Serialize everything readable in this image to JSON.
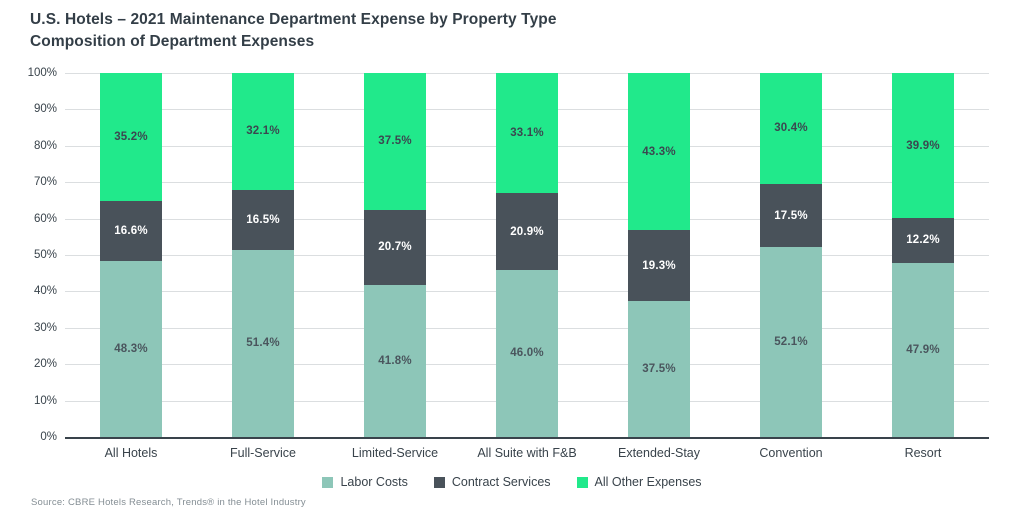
{
  "header": {
    "title": "U.S. Hotels – 2021 Maintenance Department Expense by Property Type",
    "subtitle": "Composition of Department Expenses"
  },
  "chart_data": {
    "type": "bar",
    "stacked": true,
    "title": "U.S. Hotels – 2021 Maintenance Department Expense by Property Type",
    "subtitle": "Composition of Department Expenses",
    "categories": [
      "All Hotels",
      "Full-Service",
      "Limited-Service",
      "All Suite with F&B",
      "Extended-Stay",
      "Convention",
      "Resort"
    ],
    "series": [
      {
        "name": "Labor Costs",
        "color": "#8DC6B8",
        "label_color": "#4A555D",
        "values": [
          48.3,
          51.4,
          41.8,
          46.0,
          37.5,
          52.1,
          47.9
        ]
      },
      {
        "name": "Contract Services",
        "color": "#49525A",
        "label_color": "#FFFFFF",
        "values": [
          16.6,
          16.5,
          20.7,
          20.9,
          19.3,
          17.5,
          12.2
        ]
      },
      {
        "name": "All Other Expenses",
        "color": "#21E98B",
        "label_color": "#3B4750",
        "values": [
          35.2,
          32.1,
          37.5,
          33.1,
          43.3,
          30.4,
          39.9
        ]
      }
    ],
    "value_suffix": "%",
    "xlabel": "",
    "ylabel": "",
    "ylim": [
      0,
      100
    ],
    "y_ticks": [
      "0%",
      "10%",
      "20%",
      "30%",
      "40%",
      "50%",
      "60%",
      "70%",
      "80%",
      "90%",
      "100%"
    ],
    "grid": true,
    "legend_position": "bottom"
  },
  "colors": {
    "title_text": "#333E47",
    "axis_text": "#39434B",
    "gridline": "#DBDEE0",
    "axis_line": "#39434B",
    "labor": "#8DC6B8",
    "contract": "#49525A",
    "other": "#21E98B"
  },
  "source": "Source: CBRE Hotels Research, Trends® in the Hotel Industry"
}
